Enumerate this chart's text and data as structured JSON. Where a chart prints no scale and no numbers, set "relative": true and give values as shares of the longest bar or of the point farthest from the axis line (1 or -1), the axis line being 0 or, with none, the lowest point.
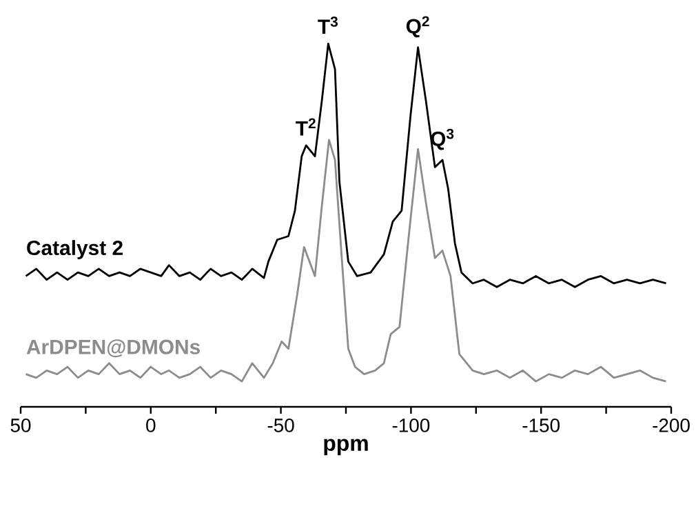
{
  "chart_data": {
    "type": "line",
    "xlabel": "ppm",
    "relative": true,
    "marker": "none",
    "line_style": "solid",
    "xlim": [
      50,
      -200
    ],
    "xticks": [
      50,
      {
        "value": 25,
        "label": null
      },
      0,
      {
        "value": -25,
        "label": null
      },
      -50,
      {
        "value": -75,
        "label": null
      },
      -100,
      {
        "value": -125,
        "label": null
      },
      -150,
      {
        "value": -175,
        "label": null
      },
      -200
    ],
    "annotations": [
      {
        "text": "T$^{2}$",
        "x": -59.7,
        "y": 0.72
      },
      {
        "text": "T$^{3}$",
        "x": -68.2,
        "y": 1.0
      },
      {
        "text": "Q$^{2}$",
        "x": -102.7,
        "y": 0.99
      },
      {
        "text": "Q$^{3}$",
        "x": -112.1,
        "y": 0.68
      }
    ],
    "series": [
      {
        "name": "Catalyst 2",
        "color": "#000000",
        "x": [
          48,
          44,
          40,
          36,
          32,
          28,
          24,
          20,
          16,
          12,
          8,
          4,
          0,
          -4,
          -7,
          -11,
          -15,
          -19,
          -23,
          -27,
          -31,
          -35,
          -39,
          -43.5,
          -45.2,
          -48.6,
          -52.9,
          -55.4,
          -58,
          -59.7,
          -63.1,
          -65.7,
          -68.2,
          -70.8,
          -72.5,
          -75.9,
          -79.3,
          -84.5,
          -89.6,
          -93,
          -96.4,
          -99.8,
          -102.7,
          -105.8,
          -109.2,
          -112.1,
          -114.3,
          -116.9,
          -119.4,
          -123.7,
          -128,
          -133,
          -138,
          -143,
          -148,
          -153,
          -158,
          -163,
          -168,
          -173,
          -178,
          -183,
          -188,
          -193,
          -198
        ],
        "values": [
          0.36,
          0.38,
          0.35,
          0.37,
          0.35,
          0.37,
          0.36,
          0.38,
          0.36,
          0.37,
          0.36,
          0.38,
          0.37,
          0.36,
          0.39,
          0.36,
          0.37,
          0.35,
          0.38,
          0.36,
          0.37,
          0.35,
          0.38,
          0.355,
          0.4,
          0.46,
          0.47,
          0.54,
          0.69,
          0.72,
          0.69,
          0.84,
          1.0,
          0.93,
          0.62,
          0.4,
          0.36,
          0.37,
          0.42,
          0.51,
          0.54,
          0.8,
          0.99,
          0.84,
          0.66,
          0.68,
          0.6,
          0.45,
          0.37,
          0.34,
          0.35,
          0.33,
          0.35,
          0.34,
          0.36,
          0.34,
          0.35,
          0.33,
          0.35,
          0.36,
          0.34,
          0.35,
          0.34,
          0.35,
          0.34
        ]
      },
      {
        "name": "ArDPEN@DMONs",
        "color": "#8c8c8c",
        "x": [
          48,
          44,
          40,
          36,
          32,
          28,
          24,
          20,
          16,
          12,
          8,
          4,
          0,
          -4,
          -7,
          -11,
          -15,
          -19,
          -23,
          -27,
          -31,
          -35,
          -39,
          -43.5,
          -46.9,
          -50.3,
          -52.9,
          -56.3,
          -58.9,
          -63.1,
          -65.7,
          -68.5,
          -70.8,
          -73.4,
          -75.9,
          -78.5,
          -82,
          -86.2,
          -89.6,
          -92.2,
          -95.6,
          -99,
          -102.7,
          -105.8,
          -109.2,
          -112.1,
          -115.2,
          -118.6,
          -123.7,
          -128,
          -133,
          -138,
          -143,
          -148,
          -153,
          -158,
          -163,
          -168,
          -173,
          -178,
          -183,
          -188,
          -193,
          -198
        ],
        "values": [
          0.09,
          0.08,
          0.1,
          0.09,
          0.11,
          0.08,
          0.1,
          0.09,
          0.12,
          0.09,
          0.1,
          0.08,
          0.11,
          0.09,
          0.1,
          0.08,
          0.09,
          0.11,
          0.08,
          0.1,
          0.09,
          0.07,
          0.12,
          0.08,
          0.12,
          0.18,
          0.16,
          0.31,
          0.44,
          0.36,
          0.55,
          0.735,
          0.68,
          0.41,
          0.16,
          0.11,
          0.09,
          0.1,
          0.12,
          0.2,
          0.22,
          0.46,
          0.71,
          0.56,
          0.41,
          0.43,
          0.36,
          0.145,
          0.1,
          0.09,
          0.1,
          0.08,
          0.1,
          0.07,
          0.09,
          0.08,
          0.1,
          0.09,
          0.11,
          0.08,
          0.09,
          0.1,
          0.08,
          0.07
        ]
      }
    ]
  }
}
